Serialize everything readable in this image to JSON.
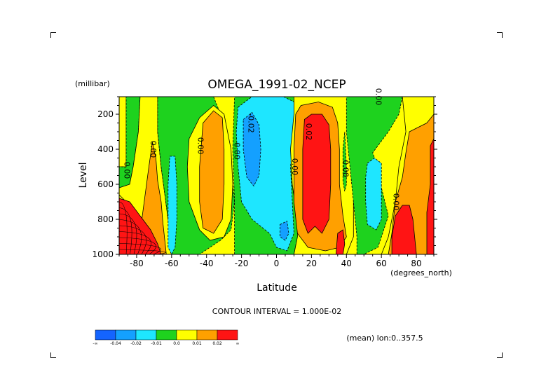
{
  "chart_data": {
    "type": "heatmap",
    "title": "OMEGA_1991-02_NCEP",
    "xlabel": "Latitude",
    "x_units": "(degrees_north)",
    "ylabel": "Level",
    "y_units": "(millibar)",
    "xlim": [
      -90,
      90
    ],
    "ylim": [
      1000,
      100
    ],
    "x_ticks": [
      "-80",
      "-60",
      "-40",
      "-20",
      "0",
      "20",
      "40",
      "60",
      "80"
    ],
    "x_tick_values": [
      -80,
      -60,
      -40,
      -20,
      0,
      20,
      40,
      60,
      80
    ],
    "y_ticks": [
      "200",
      "400",
      "600",
      "800",
      "1000"
    ],
    "y_tick_values": [
      200,
      400,
      600,
      800,
      1000
    ],
    "contour_interval_text": "CONTOUR INTERVAL = 1.000E-02",
    "subtitle_text": "(mean) lon:0..357.5",
    "contour_labels": [
      {
        "text": "0.00",
        "lat": -87,
        "lev": 520
      },
      {
        "text": "0.00",
        "lat": -72,
        "lev": 400
      },
      {
        "text": "0.00",
        "lat": -45,
        "lev": 380
      },
      {
        "text": "0.00",
        "lat": -24,
        "lev": 410
      },
      {
        "text": "-0.02",
        "lat": -16,
        "lev": 250
      },
      {
        "text": "0.00",
        "lat": 9,
        "lev": 500
      },
      {
        "text": "0.02",
        "lat": 17,
        "lev": 300
      },
      {
        "text": "0.00",
        "lat": 38,
        "lev": 510
      },
      {
        "text": "0.00",
        "lat": 57,
        "lev": 100
      },
      {
        "text": "0.00",
        "lat": 67,
        "lev": 700
      }
    ],
    "colorbar": {
      "colors": [
        "#1464ff",
        "#14a0ff",
        "#1ee6ff",
        "#1ed21e",
        "#ffff00",
        "#ffa000",
        "#ff1414"
      ],
      "labels": [
        "-∞",
        "-0.04",
        "-0.02",
        "-0.01",
        "0.0",
        "0.01",
        "0.02",
        "∞"
      ]
    },
    "regions": [
      {
        "name": "west-yellow",
        "level": "0.0",
        "poly": [
          [
            -90,
            100
          ],
          [
            -86,
            100
          ],
          [
            -86,
            500
          ],
          [
            -90,
            500
          ]
        ]
      },
      {
        "name": "sw-green",
        "level": "-0.01",
        "poly": [
          [
            -86,
            100
          ],
          [
            -78,
            100
          ],
          [
            -79,
            300
          ],
          [
            -82,
            500
          ],
          [
            -84,
            600
          ],
          [
            -90,
            620
          ],
          [
            -90,
            500
          ],
          [
            -86,
            500
          ]
        ]
      },
      {
        "name": "sh-yellow-west",
        "level": "0.0",
        "poly": [
          [
            -78,
            100
          ],
          [
            -68,
            100
          ],
          [
            -68,
            300
          ],
          [
            -66,
            500
          ],
          [
            -64,
            650
          ],
          [
            -62,
            800
          ],
          [
            -60,
            900
          ],
          [
            -60,
            1000
          ],
          [
            -68,
            1000
          ],
          [
            -74,
            920
          ],
          [
            -80,
            800
          ],
          [
            -86,
            700
          ],
          [
            -90,
            660
          ],
          [
            -90,
            620
          ],
          [
            -84,
            600
          ],
          [
            -82,
            500
          ],
          [
            -79,
            300
          ]
        ]
      },
      {
        "name": "sh-orange-tongue",
        "level": "0.01",
        "poly": [
          [
            -75,
            650
          ],
          [
            -73,
            500
          ],
          [
            -71,
            360
          ],
          [
            -69,
            450
          ],
          [
            -68,
            580
          ],
          [
            -66,
            700
          ],
          [
            -65,
            820
          ],
          [
            -63,
            1000
          ],
          [
            -68,
            1000
          ],
          [
            -74,
            920
          ],
          [
            -77,
            800
          ]
        ]
      },
      {
        "name": "sh-red-corner",
        "level": "0.02",
        "poly": [
          [
            -90,
            680
          ],
          [
            -84,
            700
          ],
          [
            -78,
            780
          ],
          [
            -72,
            860
          ],
          [
            -68,
            940
          ],
          [
            -66,
            1000
          ],
          [
            -90,
            1000
          ]
        ]
      },
      {
        "name": "sh-green",
        "level": "-0.01",
        "poly": [
          [
            -68,
            100
          ],
          [
            -36,
            100
          ],
          [
            -32,
            200
          ],
          [
            -28,
            300
          ],
          [
            -26,
            500
          ],
          [
            -24,
            700
          ],
          [
            -26,
            860
          ],
          [
            -32,
            920
          ],
          [
            -38,
            960
          ],
          [
            -44,
            1000
          ],
          [
            -60,
            1000
          ],
          [
            -60,
            900
          ],
          [
            -62,
            800
          ],
          [
            -64,
            650
          ],
          [
            -66,
            500
          ],
          [
            -68,
            300
          ]
        ]
      },
      {
        "name": "sh-cyan",
        "level": "-0.02",
        "poly": [
          [
            -61,
            440
          ],
          [
            -58,
            440
          ],
          [
            -57,
            600
          ],
          [
            -57,
            800
          ],
          [
            -58,
            960
          ],
          [
            -60,
            1000
          ],
          [
            -62,
            960
          ],
          [
            -62,
            800
          ],
          [
            -62,
            600
          ]
        ]
      },
      {
        "name": "sh-yellow-blob",
        "level": "0.0",
        "poly": [
          [
            -50,
            340
          ],
          [
            -44,
            220
          ],
          [
            -36,
            150
          ],
          [
            -30,
            200
          ],
          [
            -26,
            400
          ],
          [
            -25,
            600
          ],
          [
            -26,
            800
          ],
          [
            -30,
            900
          ],
          [
            -38,
            920
          ],
          [
            -44,
            860
          ],
          [
            -50,
            700
          ],
          [
            -51,
            500
          ]
        ]
      },
      {
        "name": "sh-orange",
        "level": "0.01",
        "poly": [
          [
            -42,
            250
          ],
          [
            -36,
            180
          ],
          [
            -31,
            220
          ],
          [
            -30,
            400
          ],
          [
            -30,
            600
          ],
          [
            -31,
            800
          ],
          [
            -36,
            880
          ],
          [
            -42,
            850
          ],
          [
            -44,
            700
          ],
          [
            -44,
            500
          ]
        ]
      },
      {
        "name": "eq-green",
        "level": "-0.01",
        "poly": [
          [
            -24,
            100
          ],
          [
            16,
            100
          ],
          [
            10,
            200
          ],
          [
            8,
            400
          ],
          [
            9,
            600
          ],
          [
            12,
            800
          ],
          [
            12,
            900
          ],
          [
            10,
            1000
          ],
          [
            -24,
            1000
          ],
          [
            -24,
            700
          ],
          [
            -25,
            400
          ]
        ]
      },
      {
        "name": "eq-cyan",
        "level": "-0.02",
        "poly": [
          [
            -22,
            160
          ],
          [
            -14,
            100
          ],
          [
            4,
            100
          ],
          [
            10,
            130
          ],
          [
            10,
            300
          ],
          [
            8,
            500
          ],
          [
            9,
            700
          ],
          [
            10,
            880
          ],
          [
            6,
            980
          ],
          [
            0,
            960
          ],
          [
            -4,
            880
          ],
          [
            -14,
            800
          ],
          [
            -20,
            700
          ],
          [
            -22,
            500
          ],
          [
            -23,
            300
          ]
        ]
      },
      {
        "name": "eq-blue",
        "level": "-0.04",
        "poly": [
          [
            -19,
            230
          ],
          [
            -14,
            190
          ],
          [
            -10,
            260
          ],
          [
            -9,
            400
          ],
          [
            -10,
            550
          ],
          [
            -13,
            610
          ],
          [
            -17,
            560
          ],
          [
            -19,
            400
          ]
        ]
      },
      {
        "name": "eq-blue-low",
        "level": "-0.04",
        "poly": [
          [
            2,
            830
          ],
          [
            6,
            810
          ],
          [
            7,
            880
          ],
          [
            5,
            920
          ],
          [
            2,
            900
          ]
        ]
      },
      {
        "name": "nh-yellow",
        "level": "0.0",
        "poly": [
          [
            10,
            100
          ],
          [
            56,
            100
          ],
          [
            50,
            300
          ],
          [
            46,
            500
          ],
          [
            44,
            700
          ],
          [
            44,
            900
          ],
          [
            40,
            1000
          ],
          [
            10,
            1000
          ],
          [
            12,
            900
          ],
          [
            12,
            800
          ],
          [
            9,
            600
          ],
          [
            8,
            400
          ],
          [
            10,
            200
          ]
        ]
      },
      {
        "name": "nh-orange",
        "level": "0.01",
        "poly": [
          [
            11,
            200
          ],
          [
            14,
            150
          ],
          [
            24,
            130
          ],
          [
            32,
            160
          ],
          [
            35,
            250
          ],
          [
            36,
            400
          ],
          [
            36,
            600
          ],
          [
            38,
            780
          ],
          [
            40,
            900
          ],
          [
            36,
            960
          ],
          [
            28,
            980
          ],
          [
            18,
            960
          ],
          [
            12,
            880
          ],
          [
            10,
            700
          ],
          [
            10,
            400
          ]
        ]
      },
      {
        "name": "nh-red",
        "level": "0.02",
        "poly": [
          [
            16,
            230
          ],
          [
            20,
            200
          ],
          [
            26,
            200
          ],
          [
            30,
            260
          ],
          [
            31,
            400
          ],
          [
            31,
            600
          ],
          [
            30,
            800
          ],
          [
            26,
            880
          ],
          [
            22,
            840
          ],
          [
            18,
            880
          ],
          [
            15,
            800
          ],
          [
            15,
            600
          ],
          [
            15,
            400
          ]
        ]
      },
      {
        "name": "nh-red-low",
        "level": "0.02",
        "poly": [
          [
            35,
            880
          ],
          [
            38,
            860
          ],
          [
            39,
            940
          ],
          [
            38,
            1000
          ],
          [
            34,
            1000
          ]
        ]
      },
      {
        "name": "nh-green",
        "level": "-0.01",
        "poly": [
          [
            40,
            100
          ],
          [
            72,
            100
          ],
          [
            70,
            200
          ],
          [
            64,
            300
          ],
          [
            58,
            380
          ],
          [
            55,
            420
          ],
          [
            58,
            500
          ],
          [
            60,
            620
          ],
          [
            64,
            780
          ],
          [
            60,
            900
          ],
          [
            58,
            960
          ],
          [
            50,
            1000
          ],
          [
            46,
            1000
          ],
          [
            46,
            900
          ],
          [
            44,
            700
          ],
          [
            42,
            500
          ],
          [
            40,
            300
          ]
        ]
      },
      {
        "name": "nh-green-thin",
        "level": "-0.01",
        "poly": [
          [
            38,
            400
          ],
          [
            39,
            300
          ],
          [
            40,
            500
          ],
          [
            40,
            600
          ],
          [
            39,
            640
          ],
          [
            38,
            580
          ]
        ]
      },
      {
        "name": "nh-cyan",
        "level": "-0.02",
        "poly": [
          [
            52,
            480
          ],
          [
            56,
            450
          ],
          [
            60,
            480
          ],
          [
            60,
            600
          ],
          [
            60,
            800
          ],
          [
            57,
            860
          ],
          [
            52,
            830
          ],
          [
            51,
            700
          ],
          [
            51,
            560
          ]
        ]
      },
      {
        "name": "nh-yellow-east",
        "level": "0.0",
        "poly": [
          [
            72,
            100
          ],
          [
            90,
            100
          ],
          [
            90,
            1000
          ],
          [
            60,
            1000
          ],
          [
            64,
            900
          ],
          [
            68,
            700
          ],
          [
            70,
            500
          ],
          [
            74,
            300
          ]
        ]
      },
      {
        "name": "nh-orange-east",
        "level": "0.01",
        "poly": [
          [
            76,
            300
          ],
          [
            86,
            250
          ],
          [
            90,
            200
          ],
          [
            90,
            1000
          ],
          [
            64,
            1000
          ],
          [
            66,
            880
          ],
          [
            68,
            700
          ],
          [
            72,
            560
          ],
          [
            74,
            420
          ]
        ]
      },
      {
        "name": "ne-red",
        "level": "0.02",
        "poly": [
          [
            68,
            780
          ],
          [
            72,
            720
          ],
          [
            76,
            720
          ],
          [
            78,
            800
          ],
          [
            79,
            900
          ],
          [
            80,
            1000
          ],
          [
            66,
            1000
          ],
          [
            66,
            900
          ]
        ]
      },
      {
        "name": "ne-red-edge",
        "level": "0.02",
        "poly": [
          [
            88,
            380
          ],
          [
            90,
            340
          ],
          [
            90,
            1000
          ],
          [
            86,
            1000
          ],
          [
            86,
            760
          ],
          [
            88,
            600
          ]
        ]
      }
    ],
    "level_colors": {
      "-0.04": "#14a0ff",
      "-0.02": "#1ee6ff",
      "-0.01": "#1ed21e",
      "0.0": "#ffff00",
      "0.01": "#ffa000",
      "0.02": "#ff1414"
    }
  }
}
